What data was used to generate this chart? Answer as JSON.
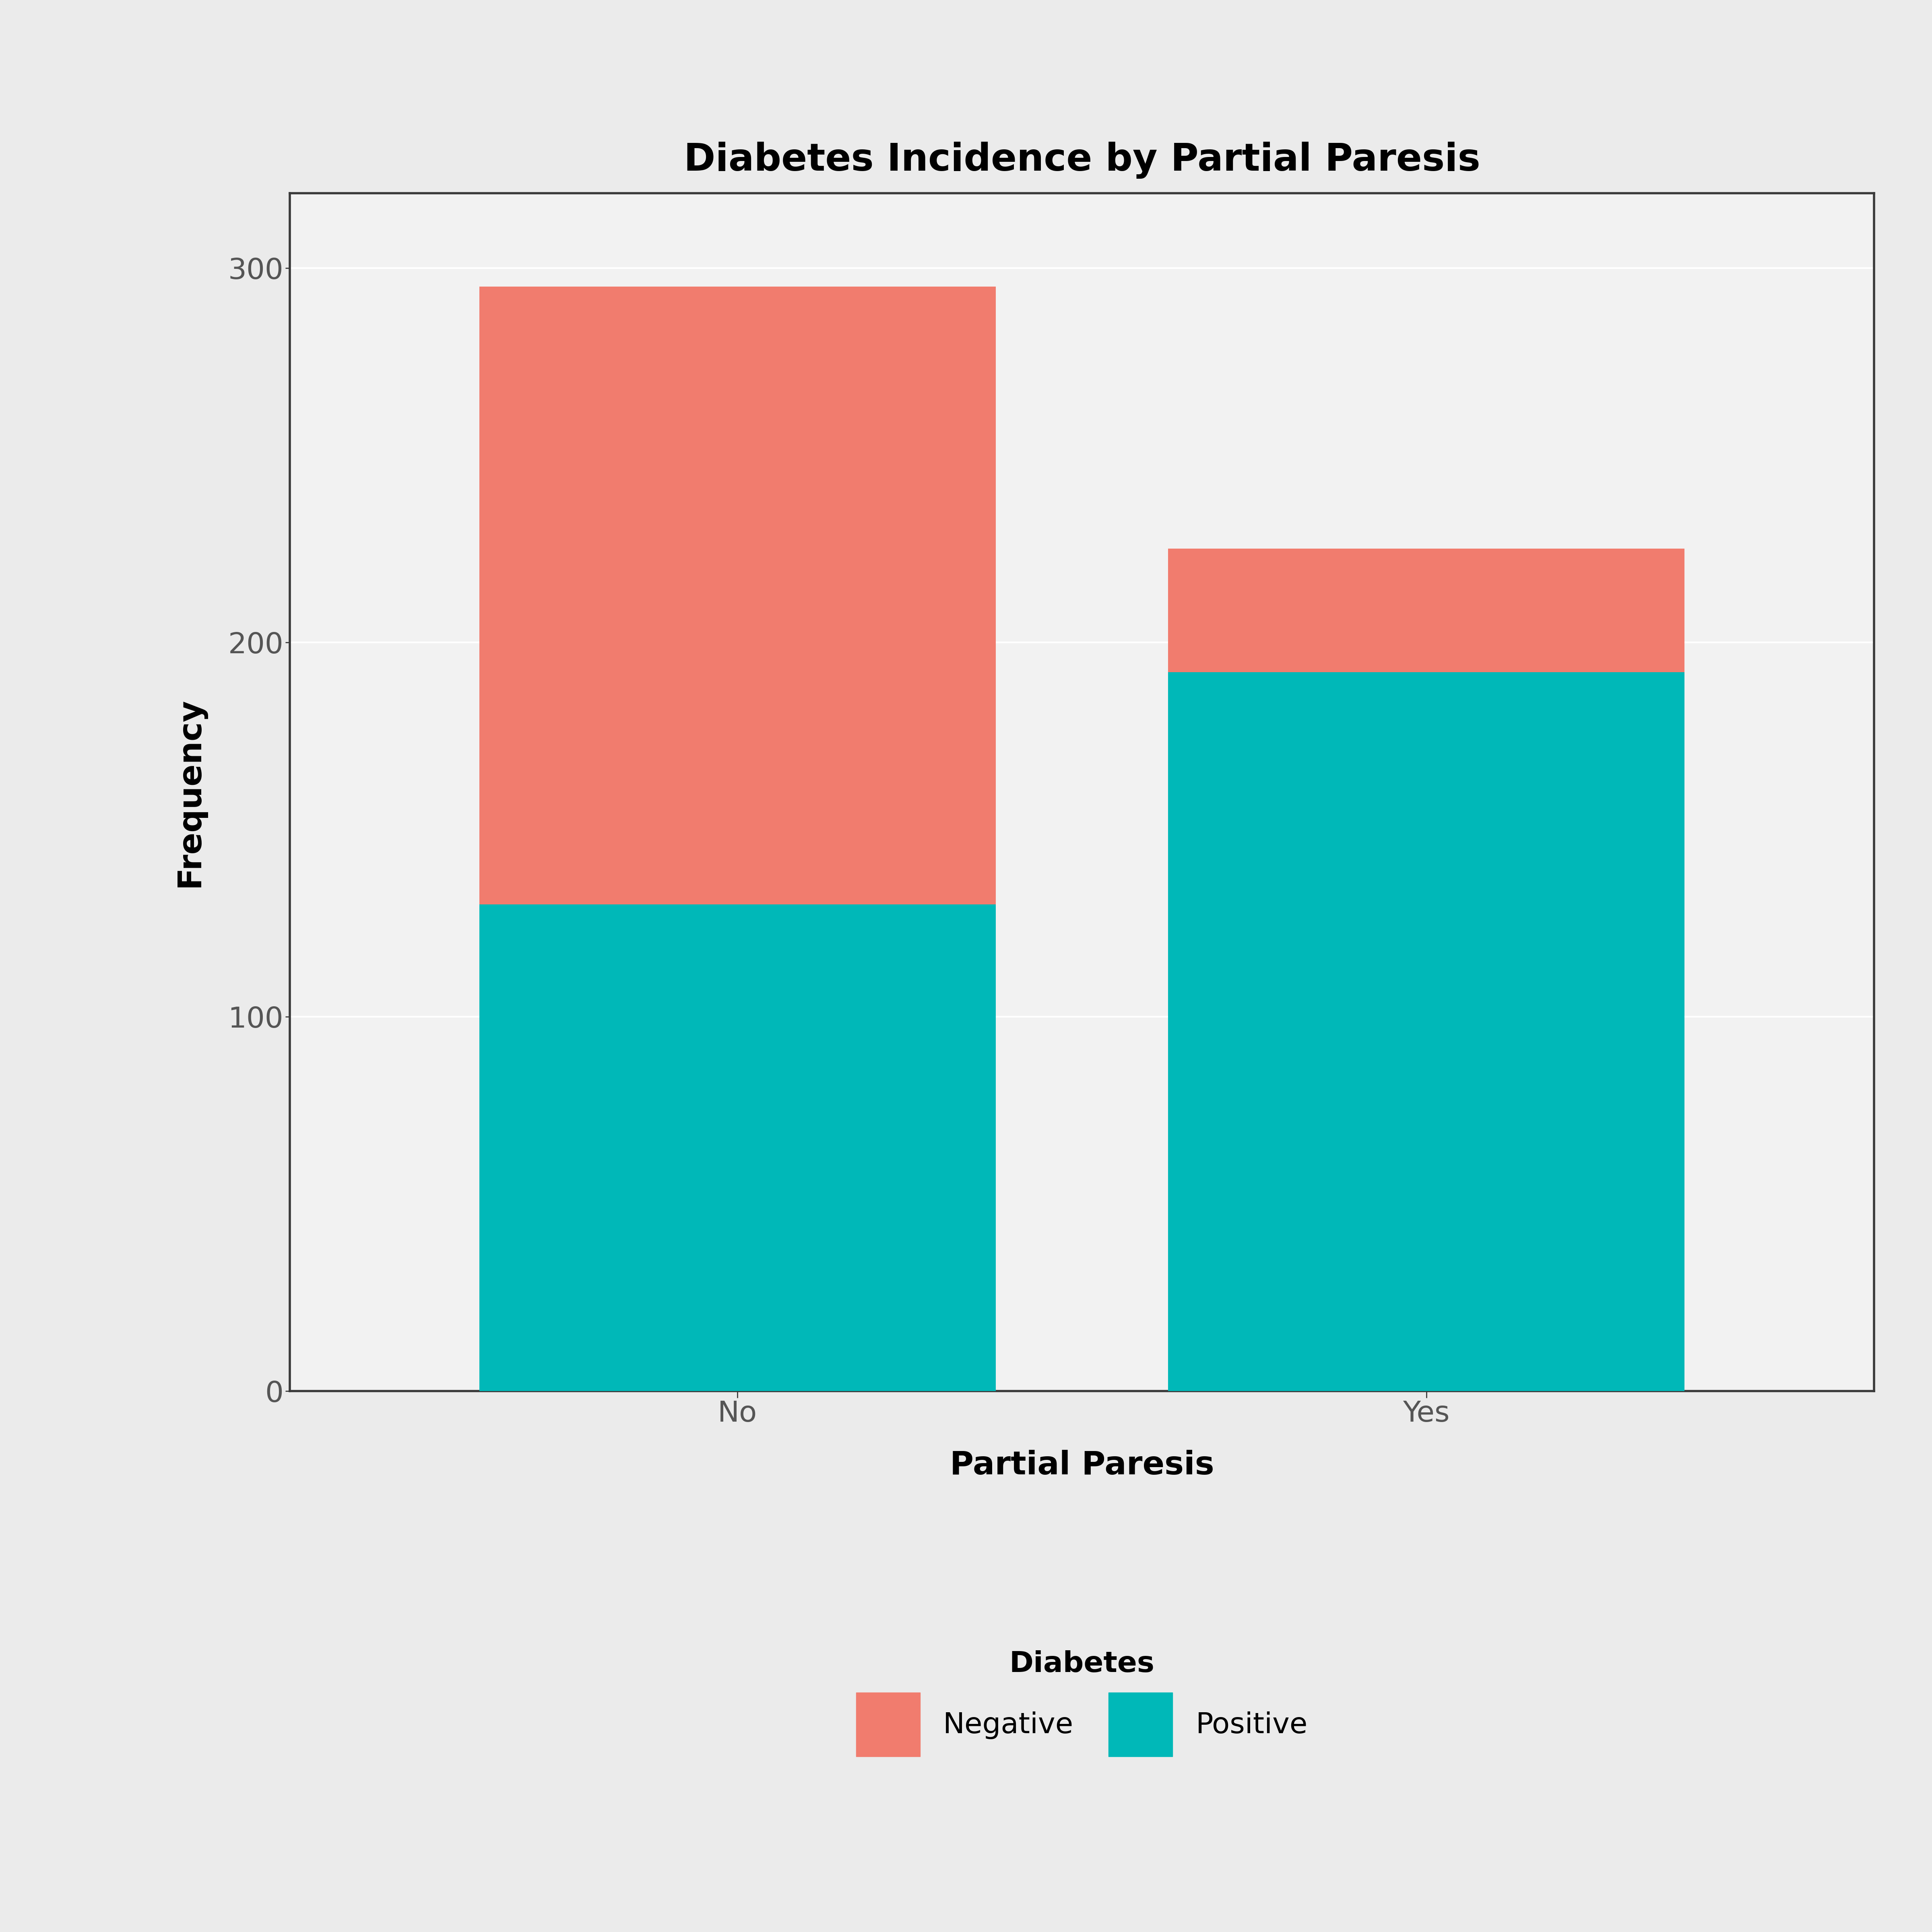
{
  "title": "Diabetes Incidence by Partial Paresis",
  "xlabel": "Partial Paresis",
  "ylabel": "Frequency",
  "categories": [
    "No",
    "Yes"
  ],
  "positive_values": [
    130,
    192
  ],
  "negative_values": [
    165,
    33
  ],
  "color_negative": "#F17C6E",
  "color_positive": "#00B8B8",
  "background_color": "#EBEBEB",
  "plot_background": "#F2F2F2",
  "ylim": [
    0,
    320
  ],
  "yticks": [
    0,
    100,
    200,
    300
  ],
  "legend_title": "Diabetes",
  "legend_labels": [
    "Negative",
    "Positive"
  ],
  "title_fontsize": 68,
  "axis_label_fontsize": 58,
  "tick_fontsize": 52,
  "legend_fontsize": 52,
  "bar_width": 0.75,
  "x_positions": [
    1.0,
    2.0
  ],
  "xlim": [
    0.35,
    2.65
  ]
}
